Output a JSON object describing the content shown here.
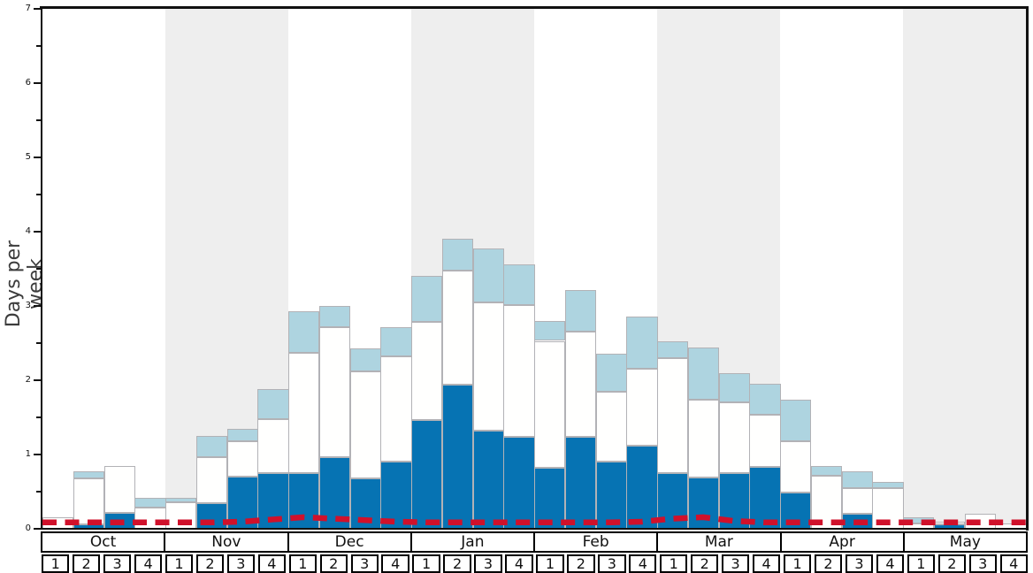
{
  "chart_data": {
    "type": "bar",
    "stacked": true,
    "title": "",
    "ylabel": "Days per week",
    "ylim": [
      0,
      7
    ],
    "yticks": [
      "0",
      "1",
      "2",
      "3",
      "4",
      "5",
      "6",
      "7"
    ],
    "grid": false,
    "legend": "none",
    "months": [
      "Oct",
      "Nov",
      "Dec",
      "Jan",
      "Feb",
      "Mar",
      "Apr",
      "May"
    ],
    "weeks_per_month": [
      "1",
      "2",
      "3",
      "4"
    ],
    "shaded_months": [
      "Nov",
      "Jan",
      "Mar",
      "May"
    ],
    "series": [
      {
        "name": "dark-blue-days",
        "color": "#0673b3",
        "values": [
          0,
          0.06,
          0.21,
          0,
          0,
          0.35,
          0.7,
          0.75,
          0.75,
          0.97,
          0.68,
          0.9,
          1.46,
          1.94,
          1.32,
          1.24,
          0.82,
          1.24,
          0.9,
          1.12,
          0.75,
          0.69,
          0.75,
          0.83,
          0.49,
          0,
          0.2,
          0,
          0,
          0.06,
          0,
          0
        ]
      },
      {
        "name": "white-days",
        "color": "#fffffe",
        "values": [
          0.15,
          0.62,
          0.63,
          0.28,
          0.36,
          0.62,
          0.48,
          0.73,
          1.62,
          1.75,
          1.44,
          1.42,
          1.33,
          1.54,
          1.73,
          1.77,
          1.71,
          1.41,
          0.94,
          1.03,
          1.55,
          1.05,
          0.95,
          0.7,
          0.69,
          0.71,
          0.35,
          0.55,
          0.07,
          0.03,
          0.2,
          0.07
        ]
      },
      {
        "name": "light-blue-days",
        "color": "#aed4e0",
        "values": [
          0,
          0.09,
          0,
          0.14,
          0.06,
          0.28,
          0.17,
          0.4,
          0.56,
          0.28,
          0.31,
          0.39,
          0.62,
          0.43,
          0.72,
          0.55,
          0.27,
          0.56,
          0.52,
          0.71,
          0.22,
          0.7,
          0.39,
          0.42,
          0.56,
          0.13,
          0.22,
          0.08,
          0.08,
          0,
          0,
          0
        ]
      }
    ],
    "overlay_line": {
      "name": "red-dashed-line",
      "color": "#d0112b",
      "style": "dashed",
      "values": [
        0.05,
        0.05,
        0.05,
        0.05,
        0.05,
        0.05,
        0.06,
        0.09,
        0.12,
        0.1,
        0.08,
        0.06,
        0.05,
        0.05,
        0.05,
        0.05,
        0.05,
        0.05,
        0.05,
        0.06,
        0.1,
        0.12,
        0.07,
        0.05,
        0.05,
        0.05,
        0.05,
        0.05,
        0.05,
        0.05,
        0.05,
        0.05
      ]
    },
    "colors": {
      "band_shading": "#eeeeee",
      "bar_border": "#b2b2b6",
      "axis": "#111111"
    }
  }
}
